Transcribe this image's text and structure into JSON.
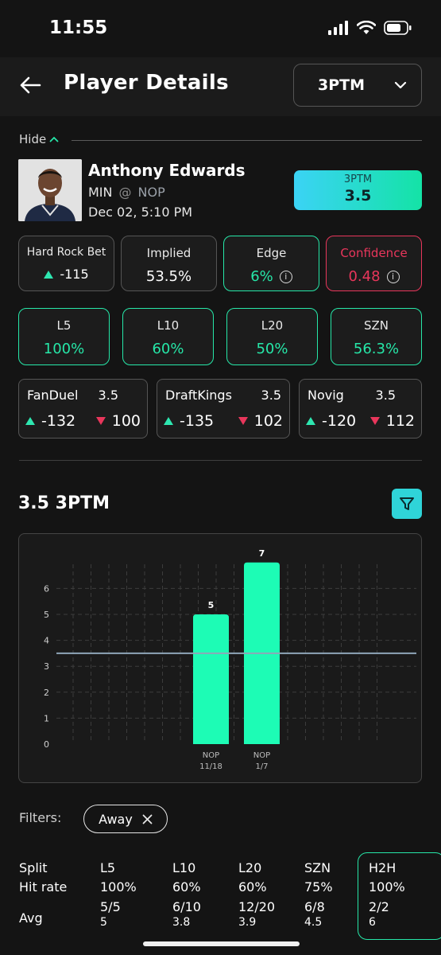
{
  "status": {
    "time": "11:55"
  },
  "header": {
    "title": "Player Details",
    "stat_selected": "3PTM"
  },
  "hide_label": "Hide",
  "player": {
    "name": "Anthony Edwards",
    "team": "MIN",
    "at": "@",
    "opponent": "NOP",
    "datetime": "Dec 02, 5:10 PM",
    "line_label": "3PTM",
    "line_value": "3.5"
  },
  "metrics": [
    {
      "label": "Hard Rock Bet",
      "value": "-115"
    },
    {
      "label": "Implied",
      "value": "53.5%"
    },
    {
      "label": "Edge",
      "value": "6%"
    },
    {
      "label": "Confidence",
      "value": "0.48"
    }
  ],
  "hit_rates": [
    {
      "label": "L5",
      "value": "100%"
    },
    {
      "label": "L10",
      "value": "60%"
    },
    {
      "label": "L20",
      "value": "50%"
    },
    {
      "label": "SZN",
      "value": "56.3%"
    }
  ],
  "books": [
    {
      "name": "FanDuel",
      "line": "3.5",
      "over": "-132",
      "under": "100"
    },
    {
      "name": "DraftKings",
      "line": "3.5",
      "over": "-135",
      "under": "102"
    },
    {
      "name": "Novig",
      "line": "3.5",
      "over": "-120",
      "under": "112"
    }
  ],
  "chart_title": "3.5 3PTM",
  "chart_data": {
    "type": "bar",
    "categories": [
      "NOP 11/18",
      "NOP 1/7"
    ],
    "category_lines": [
      [
        "NOP",
        "11/18"
      ],
      [
        "NOP",
        "1/7"
      ]
    ],
    "values": [
      5,
      7
    ],
    "reference_line": 3.5,
    "ylim": [
      0,
      7
    ],
    "yticks": [
      0,
      1,
      2,
      3,
      4,
      5,
      6
    ],
    "grid": true,
    "bar_color": "#1dfcb5"
  },
  "filters": {
    "label": "Filters:",
    "chips": [
      "Away"
    ]
  },
  "splits": {
    "row_labels": {
      "split": "Split",
      "hit": "Hit rate",
      "avg": "Avg"
    },
    "columns": [
      {
        "name": "L5",
        "hit": "100%",
        "frac": "5/5",
        "avg": "5"
      },
      {
        "name": "L10",
        "hit": "60%",
        "frac": "6/10",
        "avg": "3.8"
      },
      {
        "name": "L20",
        "hit": "60%",
        "frac": "12/20",
        "avg": "3.9"
      },
      {
        "name": "SZN",
        "hit": "75%",
        "frac": "6/8",
        "avg": "4.5"
      },
      {
        "name": "H2H",
        "hit": "100%",
        "frac": "2/2",
        "avg": "6"
      }
    ]
  },
  "colors": {
    "accent": "#26e7a8",
    "negative": "#e8365b",
    "background": "#141414"
  }
}
